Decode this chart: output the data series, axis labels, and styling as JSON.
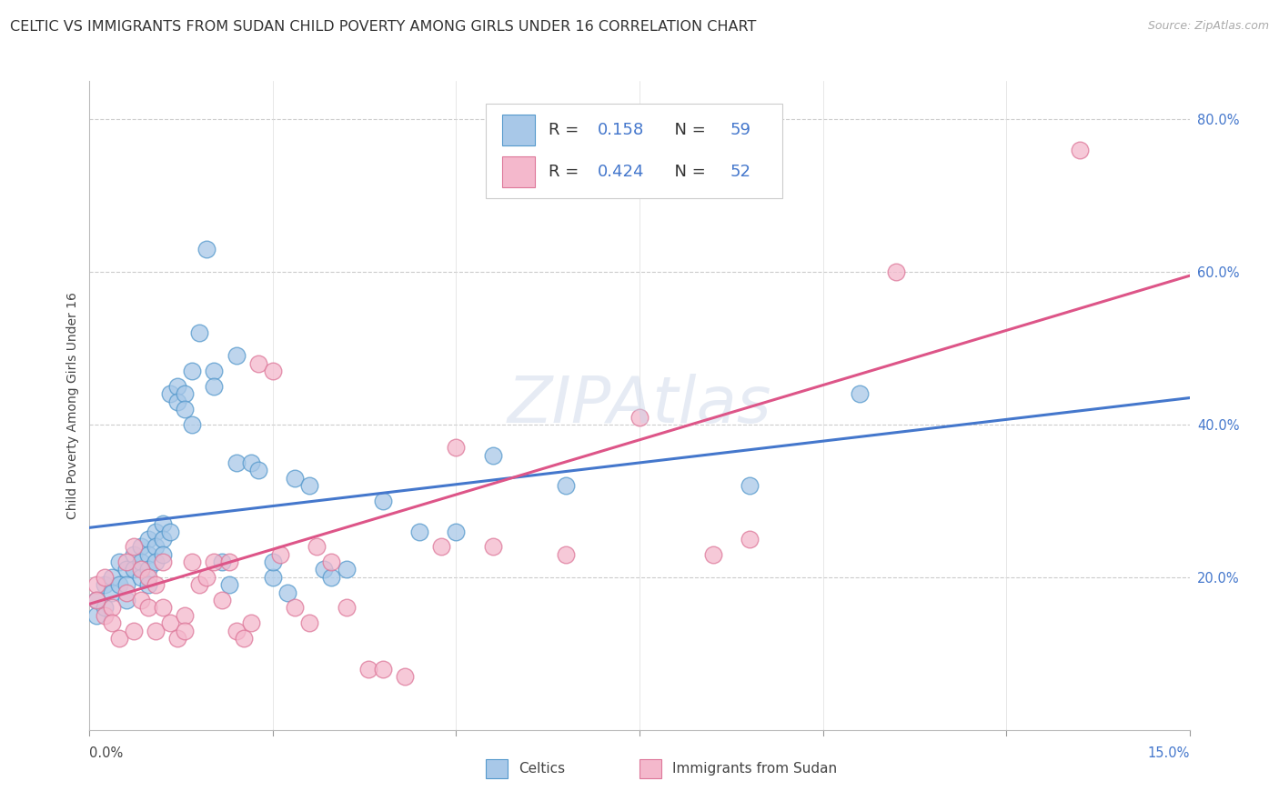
{
  "title": "CELTIC VS IMMIGRANTS FROM SUDAN CHILD POVERTY AMONG GIRLS UNDER 16 CORRELATION CHART",
  "source": "Source: ZipAtlas.com",
  "ylabel": "Child Poverty Among Girls Under 16",
  "xlim": [
    0.0,
    0.15
  ],
  "ylim": [
    0.0,
    0.85
  ],
  "yticks_right": [
    0.2,
    0.4,
    0.6,
    0.8
  ],
  "yticklabels_right": [
    "20.0%",
    "40.0%",
    "60.0%",
    "80.0%"
  ],
  "watermark": "ZIPAtlas",
  "celtics_color": "#a8c8e8",
  "sudan_color": "#f4b8cc",
  "celtics_edge_color": "#5599cc",
  "sudan_edge_color": "#dd7799",
  "celtics_line_color": "#4477cc",
  "sudan_line_color": "#dd5588",
  "blue_text_color": "#4477cc",
  "celtics_scatter_x": [
    0.001,
    0.001,
    0.002,
    0.002,
    0.003,
    0.003,
    0.004,
    0.004,
    0.005,
    0.005,
    0.005,
    0.006,
    0.006,
    0.007,
    0.007,
    0.007,
    0.008,
    0.008,
    0.008,
    0.008,
    0.009,
    0.009,
    0.009,
    0.01,
    0.01,
    0.01,
    0.011,
    0.011,
    0.012,
    0.012,
    0.013,
    0.013,
    0.014,
    0.014,
    0.015,
    0.016,
    0.017,
    0.017,
    0.018,
    0.019,
    0.02,
    0.02,
    0.022,
    0.023,
    0.025,
    0.025,
    0.027,
    0.028,
    0.03,
    0.032,
    0.033,
    0.035,
    0.04,
    0.045,
    0.05,
    0.055,
    0.065,
    0.09,
    0.105
  ],
  "celtics_scatter_y": [
    0.17,
    0.15,
    0.19,
    0.16,
    0.2,
    0.18,
    0.22,
    0.19,
    0.21,
    0.19,
    0.17,
    0.23,
    0.21,
    0.24,
    0.22,
    0.2,
    0.25,
    0.23,
    0.21,
    0.19,
    0.26,
    0.24,
    0.22,
    0.27,
    0.25,
    0.23,
    0.44,
    0.26,
    0.45,
    0.43,
    0.44,
    0.42,
    0.47,
    0.4,
    0.52,
    0.63,
    0.47,
    0.45,
    0.22,
    0.19,
    0.49,
    0.35,
    0.35,
    0.34,
    0.2,
    0.22,
    0.18,
    0.33,
    0.32,
    0.21,
    0.2,
    0.21,
    0.3,
    0.26,
    0.26,
    0.36,
    0.32,
    0.32,
    0.44
  ],
  "sudan_scatter_x": [
    0.001,
    0.001,
    0.002,
    0.002,
    0.003,
    0.003,
    0.004,
    0.005,
    0.005,
    0.006,
    0.006,
    0.007,
    0.007,
    0.008,
    0.008,
    0.009,
    0.009,
    0.01,
    0.01,
    0.011,
    0.012,
    0.013,
    0.013,
    0.014,
    0.015,
    0.016,
    0.017,
    0.018,
    0.019,
    0.02,
    0.021,
    0.022,
    0.023,
    0.025,
    0.026,
    0.028,
    0.03,
    0.031,
    0.033,
    0.035,
    0.038,
    0.04,
    0.043,
    0.048,
    0.05,
    0.055,
    0.065,
    0.075,
    0.085,
    0.09,
    0.11,
    0.135
  ],
  "sudan_scatter_y": [
    0.19,
    0.17,
    0.2,
    0.15,
    0.16,
    0.14,
    0.12,
    0.22,
    0.18,
    0.24,
    0.13,
    0.21,
    0.17,
    0.2,
    0.16,
    0.19,
    0.13,
    0.22,
    0.16,
    0.14,
    0.12,
    0.15,
    0.13,
    0.22,
    0.19,
    0.2,
    0.22,
    0.17,
    0.22,
    0.13,
    0.12,
    0.14,
    0.48,
    0.47,
    0.23,
    0.16,
    0.14,
    0.24,
    0.22,
    0.16,
    0.08,
    0.08,
    0.07,
    0.24,
    0.37,
    0.24,
    0.23,
    0.41,
    0.23,
    0.25,
    0.6,
    0.76
  ],
  "celtics_trend_x": [
    0.0,
    0.15
  ],
  "celtics_trend_y": [
    0.265,
    0.435
  ],
  "sudan_trend_x": [
    0.0,
    0.15
  ],
  "sudan_trend_y": [
    0.165,
    0.595
  ],
  "background_color": "#ffffff",
  "grid_color": "#cccccc",
  "title_fontsize": 11.5,
  "axis_label_fontsize": 10,
  "tick_fontsize": 10.5,
  "legend_fontsize": 13
}
